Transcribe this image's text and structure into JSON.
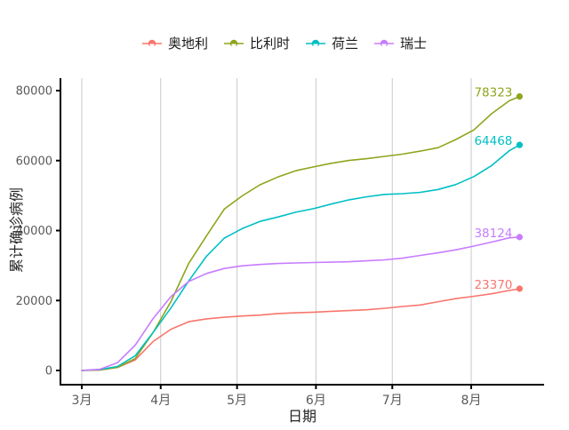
{
  "figure_background": "#FFFFFF",
  "panel": {
    "grid": "vertical-only",
    "gridline_color": "#C9C9C9",
    "axis_line_color": "#000000",
    "tick_label_color": "#595959",
    "axis_title_color": "#262626"
  },
  "chart_data": {
    "type": "line",
    "title": "",
    "xlabel": "日期",
    "ylabel": "累计确诊病例",
    "legend_position": "top",
    "x_axis": {
      "note": "day offsets from 3月1日",
      "tick_labels": [
        "3月",
        "4月",
        "5月",
        "6月",
        "7月",
        "8月"
      ],
      "tick_days": [
        0,
        31,
        61,
        92,
        122,
        153
      ],
      "domain_days": [
        0,
        172
      ]
    },
    "y_axis": {
      "tick_labels": [
        "0",
        "20000",
        "40000",
        "60000",
        "80000"
      ],
      "ticks": [
        0,
        20000,
        40000,
        60000,
        80000
      ],
      "ylim": [
        0,
        80000
      ]
    },
    "days": [
      0,
      7,
      14,
      21,
      28,
      35,
      42,
      49,
      56,
      63,
      70,
      77,
      84,
      91,
      98,
      105,
      112,
      119,
      126,
      133,
      140,
      147,
      154,
      161,
      168,
      172
    ],
    "series": [
      {
        "name": "奥地利",
        "color": "#F8766D",
        "end_label": "23370",
        "values": [
          10,
          104,
          860,
          3024,
          8291,
          11781,
          13945,
          14749,
          15225,
          15558,
          15833,
          16269,
          16486,
          16655,
          16902,
          17109,
          17341,
          17766,
          18280,
          18709,
          19655,
          20558,
          21212,
          21919,
          22876,
          23370
        ]
      },
      {
        "name": "比利时",
        "color": "#8FA51D",
        "end_label": "78323",
        "values": [
          2,
          169,
          886,
          3401,
          10836,
          19691,
          30589,
          38496,
          46134,
          49906,
          53081,
          55280,
          57092,
          58186,
          59226,
          60029,
          60550,
          61209,
          61838,
          62707,
          63706,
          66026,
          68751,
          73401,
          77113,
          78323
        ]
      },
      {
        "name": "荷兰",
        "color": "#00BFC4",
        "end_label": "64468",
        "values": [
          10,
          265,
          1135,
          4204,
          10866,
          17851,
          25587,
          32655,
          37845,
          40571,
          42627,
          43870,
          45236,
          46257,
          47574,
          48783,
          49658,
          50335,
          50548,
          50921,
          51725,
          53151,
          55415,
          58564,
          62844,
          64468
        ]
      },
      {
        "name": "瑞士",
        "color": "#C77CFF",
        "end_label": "38124",
        "values": [
          27,
          337,
          2200,
          7245,
          14829,
          21100,
          25415,
          27740,
          29164,
          29905,
          30305,
          30587,
          30725,
          30845,
          30956,
          31094,
          31332,
          31617,
          32101,
          32883,
          33634,
          34477,
          35550,
          36708,
          37924,
          38124
        ]
      }
    ]
  }
}
